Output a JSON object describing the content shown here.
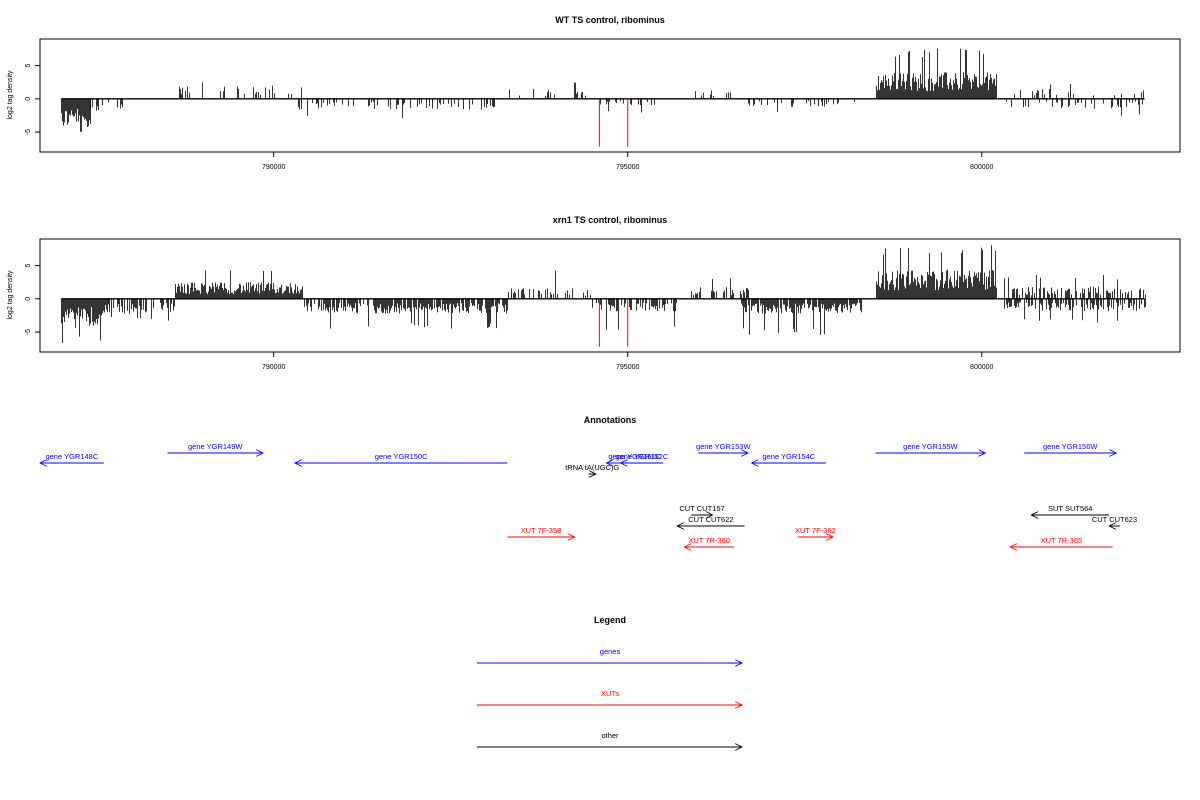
{
  "chart_data": [
    {
      "type": "bar",
      "title": "WT TS control, ribominus",
      "ylabel": "log2 tag density",
      "xlim": [
        786700,
        802800
      ],
      "ylim": [
        -8,
        9
      ],
      "x_ticks": [
        790000,
        795000,
        800000
      ],
      "x_tick_labels": [
        "790000",
        "795000",
        "800000"
      ],
      "y_ticks": [
        5,
        0,
        -5
      ],
      "y_tick_labels": [
        "5",
        "0",
        "-5"
      ],
      "series": [
        {
          "color": "#000000",
          "values_description_segments": [
            {
              "x_start": 787000,
              "x_end": 787400,
              "sign": -1,
              "mean": 3.5,
              "max": 5.8,
              "density": 1.0
            },
            {
              "x_start": 787400,
              "x_end": 787900,
              "sign": -1,
              "mean": 1.5,
              "max": 2.8,
              "density": 0.4
            },
            {
              "x_start": 788600,
              "x_end": 790400,
              "sign": 1,
              "mean": 1.6,
              "max": 3.0,
              "density": 0.25
            },
            {
              "x_start": 790300,
              "x_end": 793200,
              "sign": -1,
              "mean": 1.3,
              "max": 3.2,
              "density": 0.3
            },
            {
              "x_start": 793300,
              "x_end": 794400,
              "sign": 1,
              "mean": 1.2,
              "max": 2.5,
              "density": 0.15
            },
            {
              "x_start": 794600,
              "x_end": 795400,
              "sign": -1,
              "mean": 1.0,
              "max": 2.3,
              "density": 0.25
            },
            {
              "x_start": 795900,
              "x_end": 796500,
              "sign": 1,
              "mean": 1.1,
              "max": 2.2,
              "density": 0.15
            },
            {
              "x_start": 796600,
              "x_end": 798200,
              "sign": -1,
              "mean": 1.0,
              "max": 2.2,
              "density": 0.25
            },
            {
              "x_start": 798500,
              "x_end": 800200,
              "sign": 1,
              "mean": 3.2,
              "max": 7.8,
              "density": 1.0
            },
            {
              "x_start": 800300,
              "x_end": 802300,
              "sign": -1,
              "mean": 1.2,
              "max": 2.6,
              "density": 0.2
            },
            {
              "x_start": 800300,
              "x_end": 802300,
              "sign": 1,
              "mean": 1.2,
              "max": 2.4,
              "density": 0.15
            }
          ]
        },
        {
          "color": "#ff0000",
          "points": [
            [
              794600,
              -7.2
            ],
            [
              795000,
              -7.2
            ]
          ]
        }
      ]
    },
    {
      "type": "bar",
      "title": "xrn1 TS control, ribominus",
      "ylabel": "log2 tag density",
      "xlim": [
        786700,
        802800
      ],
      "ylim": [
        -8,
        9
      ],
      "x_ticks": [
        790000,
        795000,
        800000
      ],
      "x_tick_labels": [
        "790000",
        "795000",
        "800000"
      ],
      "y_ticks": [
        5,
        0,
        -5
      ],
      "y_tick_labels": [
        "5",
        "0",
        "-5"
      ],
      "series": [
        {
          "color": "#000000",
          "values_description_segments": [
            {
              "x_start": 787000,
              "x_end": 787600,
              "sign": -1,
              "mean": 3.5,
              "max": 6.8,
              "density": 1.0
            },
            {
              "x_start": 787600,
              "x_end": 788600,
              "sign": -1,
              "mean": 1.8,
              "max": 3.3,
              "density": 0.6
            },
            {
              "x_start": 788600,
              "x_end": 790400,
              "sign": 1,
              "mean": 2.0,
              "max": 4.3,
              "density": 1.0
            },
            {
              "x_start": 790400,
              "x_end": 793300,
              "sign": -1,
              "mean": 1.8,
              "max": 4.5,
              "density": 0.8
            },
            {
              "x_start": 793300,
              "x_end": 794500,
              "sign": 1,
              "mean": 1.3,
              "max": 4.3,
              "density": 0.3
            },
            {
              "x_start": 794500,
              "x_end": 795700,
              "sign": -1,
              "mean": 1.5,
              "max": 5.0,
              "density": 0.6
            },
            {
              "x_start": 795900,
              "x_end": 796700,
              "sign": 1,
              "mean": 1.4,
              "max": 3.3,
              "density": 0.5
            },
            {
              "x_start": 796600,
              "x_end": 798300,
              "sign": -1,
              "mean": 1.8,
              "max": 5.5,
              "density": 0.9
            },
            {
              "x_start": 798500,
              "x_end": 800200,
              "sign": 1,
              "mean": 3.5,
              "max": 8.2,
              "density": 1.0
            },
            {
              "x_start": 800300,
              "x_end": 802300,
              "sign": -1,
              "mean": 1.5,
              "max": 3.7,
              "density": 0.6
            },
            {
              "x_start": 800300,
              "x_end": 802300,
              "sign": 1,
              "mean": 1.5,
              "max": 3.6,
              "density": 0.5
            }
          ]
        },
        {
          "color": "#ff0000",
          "points": [
            [
              794600,
              -7.2
            ],
            [
              795000,
              -7.2
            ]
          ]
        }
      ]
    },
    {
      "type": "annotation-track",
      "title": "Annotations",
      "colors": {
        "genes": "#0000ff",
        "XUTs": "#ff0000",
        "other": "#000000"
      },
      "features": [
        {
          "label": "gene YGR148C",
          "color": "#0000ff",
          "start": 786700,
          "end": 787600,
          "dir": -1,
          "row": 1
        },
        {
          "label": "gene YGR149W",
          "color": "#0000ff",
          "start": 788500,
          "end": 789850,
          "dir": 1,
          "row": 0
        },
        {
          "label": "gene YGR150C",
          "color": "#0000ff",
          "start": 790300,
          "end": 793300,
          "dir": -1,
          "row": 1
        },
        {
          "label": "gene YGR151C",
          "color": "#0000ff",
          "start": 794700,
          "end": 795500,
          "dir": -1,
          "row": 1
        },
        {
          "label": "gene YGR152C",
          "color": "#0000ff",
          "start": 794900,
          "end": 795500,
          "dir": -1,
          "row": 1
        },
        {
          "label": "tRNA tA(UGC)G",
          "color": "#000000",
          "start": 794450,
          "end": 794550,
          "dir": 1,
          "row": 2
        },
        {
          "label": "gene YGR153W",
          "color": "#0000ff",
          "start": 796000,
          "end": 796700,
          "dir": 1,
          "row": 0
        },
        {
          "label": "gene YGR154C",
          "color": "#0000ff",
          "start": 796750,
          "end": 797800,
          "dir": -1,
          "row": 1
        },
        {
          "label": "gene YGR155W",
          "color": "#0000ff",
          "start": 798500,
          "end": 800050,
          "dir": 1,
          "row": 0
        },
        {
          "label": "gene YGR156W",
          "color": "#0000ff",
          "start": 800600,
          "end": 801900,
          "dir": 1,
          "row": 0
        },
        {
          "label": "CUT CUT157",
          "color": "#000000",
          "start": 795900,
          "end": 796200,
          "dir": 1,
          "row": 5
        },
        {
          "label": "CUT CUT622",
          "color": "#000000",
          "start": 795700,
          "end": 796650,
          "dir": -1,
          "row": 6
        },
        {
          "label": "SUT SUT564",
          "color": "#000000",
          "start": 800700,
          "end": 801800,
          "dir": -1,
          "row": 5
        },
        {
          "label": "CUT CUT623",
          "color": "#000000",
          "start": 801800,
          "end": 801950,
          "dir": -1,
          "row": 6
        },
        {
          "label": "XUT 7F-358",
          "color": "#ff0000",
          "start": 793300,
          "end": 794250,
          "dir": 1,
          "row": 7
        },
        {
          "label": "XUT 7R-360",
          "color": "#ff0000",
          "start": 795800,
          "end": 796500,
          "dir": -1,
          "row": 8
        },
        {
          "label": "XUT 7F-362",
          "color": "#ff0000",
          "start": 797400,
          "end": 797900,
          "dir": 1,
          "row": 7
        },
        {
          "label": "XUT 7R-365",
          "color": "#ff0000",
          "start": 800400,
          "end": 801850,
          "dir": -1,
          "row": 8
        }
      ]
    },
    {
      "type": "legend",
      "title": "Legend",
      "entries": [
        {
          "label": "genes",
          "color": "#0000ff"
        },
        {
          "label": "XUTs",
          "color": "#ff0000"
        },
        {
          "label": "other",
          "color": "#000000"
        }
      ]
    }
  ]
}
